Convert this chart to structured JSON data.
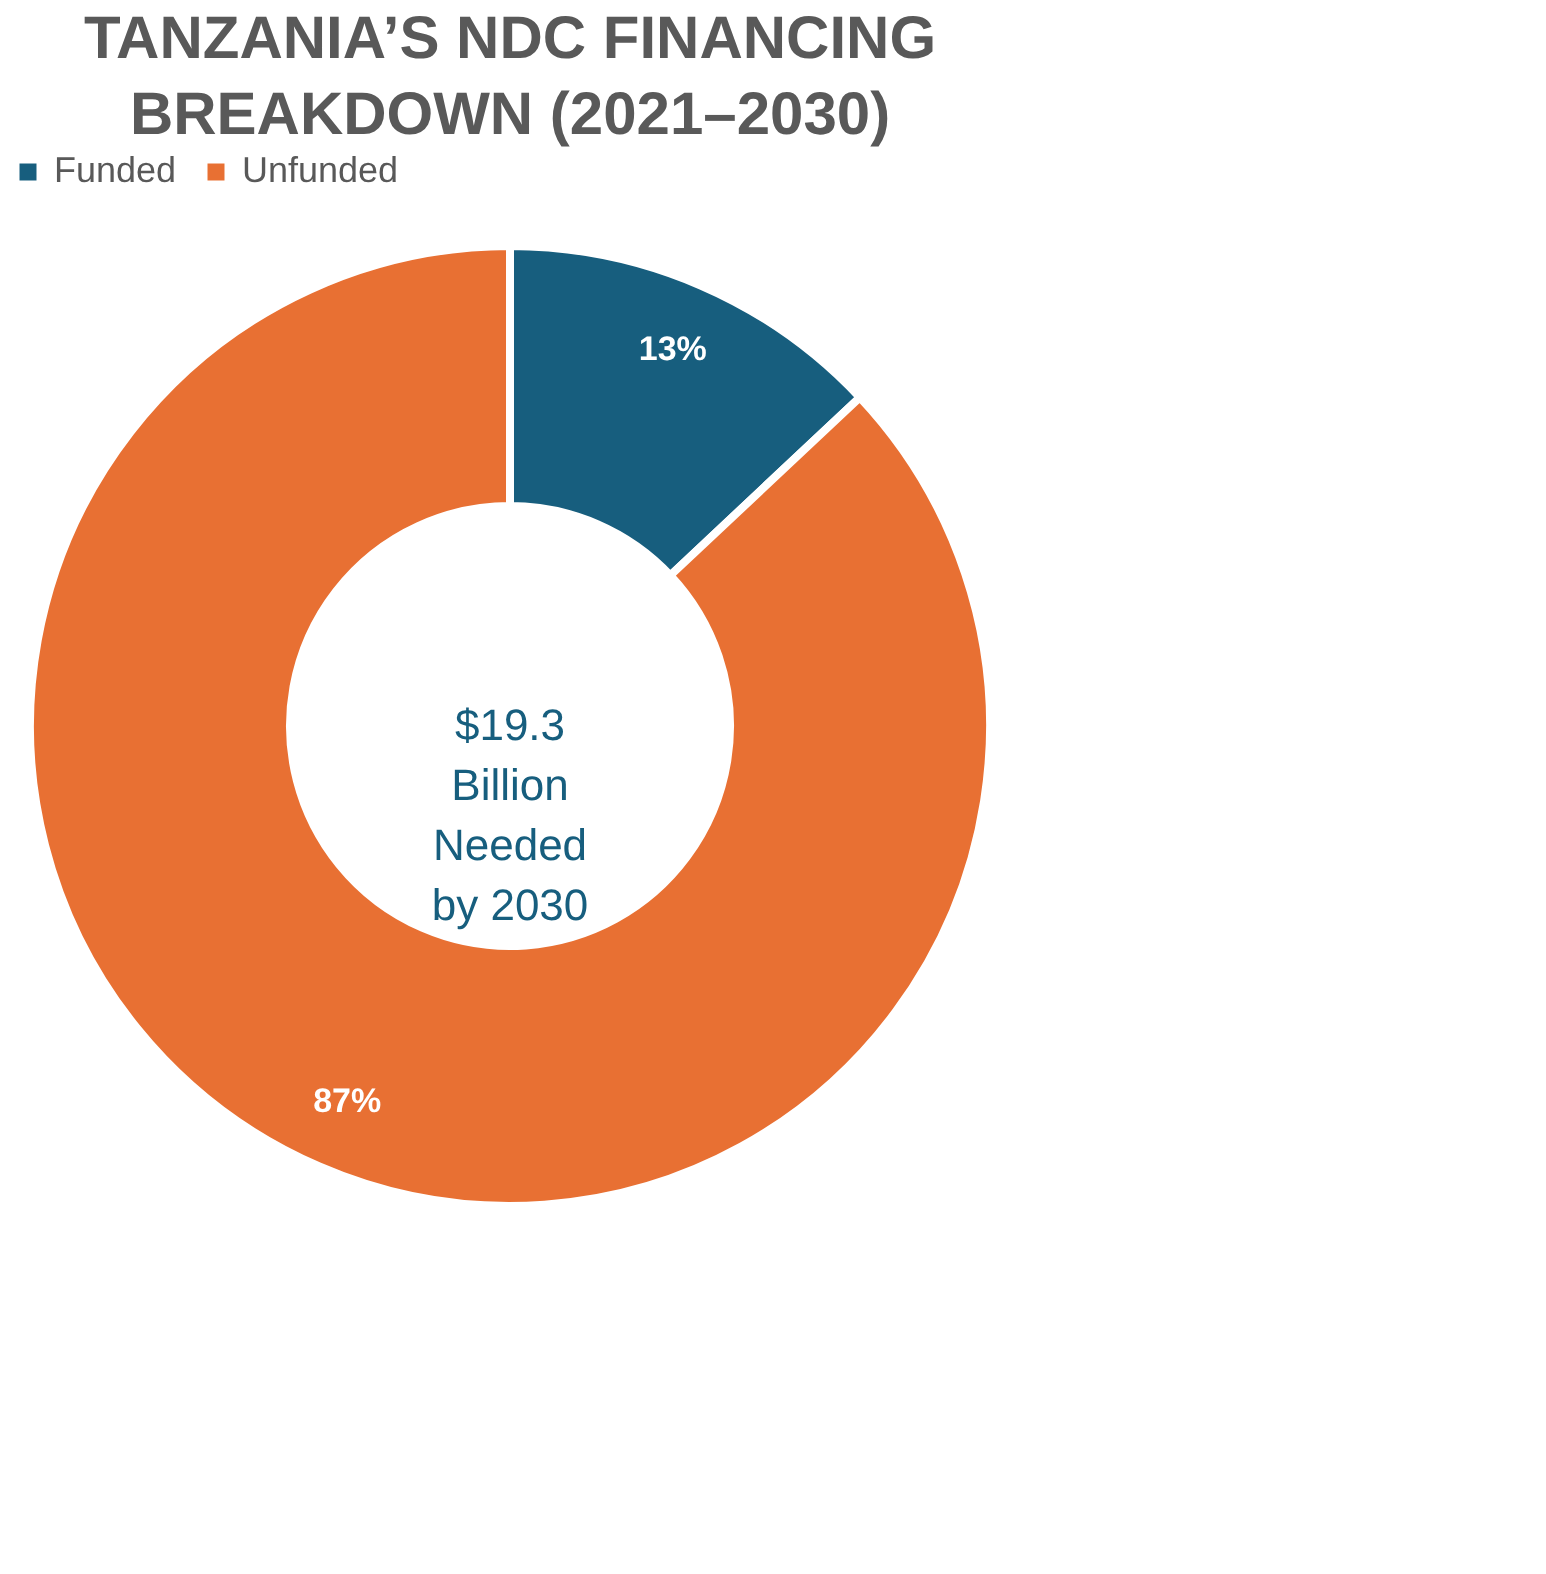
{
  "chart_data": {
    "type": "donut",
    "title": "TANZANIA’S NDC FINANCING BREAKDOWN (2021–2030)",
    "categories": [
      "Funded",
      "Unfunded"
    ],
    "values": [
      13,
      87
    ],
    "colors": [
      "#175e7e",
      "#e87033"
    ],
    "value_labels": [
      "13%",
      "87%"
    ],
    "legend": "top",
    "annotations": [
      "$19.3 Billion Needed by 2030"
    ]
  }
}
